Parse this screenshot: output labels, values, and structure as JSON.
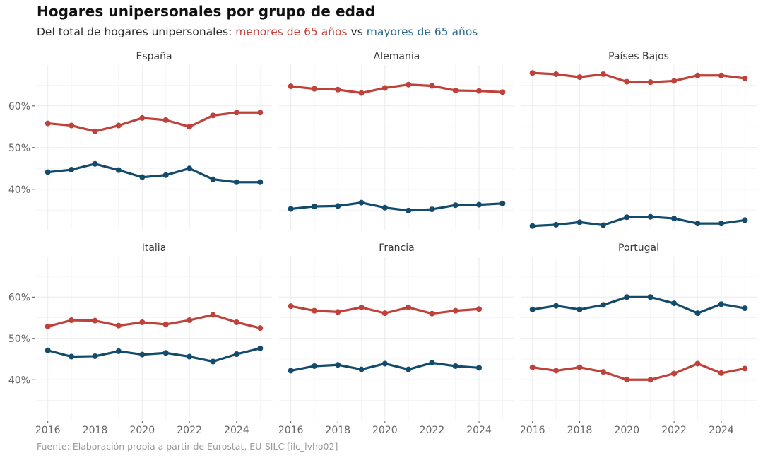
{
  "header": {
    "title": "Hogares unipersonales por grupo de edad",
    "subtitle_prefix": "Del total de hogares unipersonales: ",
    "subtitle_red": "menores de 65 años",
    "subtitle_mid": " vs ",
    "subtitle_blue": "mayores de 65 años"
  },
  "caption": "Fuente: Elaboración propia a partir de Eurostat, EU-SILC [ilc_lvho02]",
  "colors": {
    "menores_65": "#C0403A",
    "mayores_65": "#134B6C",
    "subtitle_red": "#C8423C",
    "subtitle_blue": "#2E6A8E"
  },
  "chart_data": {
    "type": "line",
    "layout": "facet 2x3, shared axes",
    "ylim": [
      30.3,
      69.8
    ],
    "xlim": [
      2015.5,
      2025.5
    ],
    "y_ticks": [
      40,
      50,
      60
    ],
    "y_tick_labels": [
      "40%",
      "50%",
      "60%"
    ],
    "x_ticks": [
      2016,
      2018,
      2020,
      2022,
      2024
    ],
    "x_tick_labels": [
      "2016",
      "2018",
      "2020",
      "2022",
      "2024"
    ],
    "grid": true,
    "legend": "none (encoded in subtitle colors)",
    "series_names": [
      "menores de 65 años",
      "mayores de 65 años"
    ],
    "panels": [
      {
        "name": "España",
        "x": [
          2016,
          2017,
          2018,
          2019,
          2020,
          2021,
          2022,
          2023,
          2024,
          2025
        ],
        "series": [
          {
            "name": "menores de 65 años",
            "values": [
              55.8,
              55.3,
              53.9,
              55.3,
              57.1,
              56.6,
              55.0,
              57.7,
              58.4,
              58.4
            ]
          },
          {
            "name": "mayores de 65 años",
            "values": [
              44.1,
              44.7,
              46.1,
              44.6,
              42.9,
              43.4,
              45.0,
              42.4,
              41.7,
              41.7
            ]
          }
        ]
      },
      {
        "name": "Alemania",
        "x": [
          2016,
          2017,
          2018,
          2019,
          2020,
          2021,
          2022,
          2023,
          2024,
          2025
        ],
        "series": [
          {
            "name": "menores de 65 años",
            "values": [
              64.7,
              64.1,
              63.9,
              63.1,
              64.3,
              65.1,
              64.8,
              63.7,
              63.6,
              63.3
            ]
          },
          {
            "name": "mayores de 65 años",
            "values": [
              35.3,
              35.9,
              36.0,
              36.8,
              35.6,
              34.9,
              35.2,
              36.2,
              36.3,
              36.6
            ]
          }
        ]
      },
      {
        "name": "Países Bajos",
        "x": [
          2016,
          2017,
          2018,
          2019,
          2020,
          2021,
          2022,
          2023,
          2024,
          2025
        ],
        "series": [
          {
            "name": "menores de 65 años",
            "values": [
              67.9,
              67.6,
              66.9,
              67.6,
              65.8,
              65.7,
              66.0,
              67.3,
              67.3,
              66.6
            ]
          },
          {
            "name": "mayores de 65 años",
            "values": [
              31.2,
              31.5,
              32.1,
              31.4,
              33.3,
              33.4,
              33.0,
              31.8,
              31.8,
              32.6
            ]
          }
        ]
      },
      {
        "name": "Italia",
        "x": [
          2016,
          2017,
          2018,
          2019,
          2020,
          2021,
          2022,
          2023,
          2024,
          2025
        ],
        "series": [
          {
            "name": "menores de 65 años",
            "values": [
              52.9,
              54.4,
              54.3,
              53.1,
              53.9,
              53.4,
              54.4,
              55.7,
              53.9,
              52.5
            ]
          },
          {
            "name": "mayores de 65 años",
            "values": [
              47.1,
              45.6,
              45.7,
              46.9,
              46.1,
              46.5,
              45.6,
              44.4,
              46.2,
              47.6
            ]
          }
        ]
      },
      {
        "name": "Francia",
        "x": [
          2016,
          2017,
          2018,
          2019,
          2020,
          2021,
          2022,
          2023,
          2024
        ],
        "series": [
          {
            "name": "menores de 65 años",
            "values": [
              57.8,
              56.7,
              56.4,
              57.5,
              56.1,
              57.5,
              56.0,
              56.7,
              57.1
            ]
          },
          {
            "name": "mayores de 65 años",
            "values": [
              42.2,
              43.3,
              43.6,
              42.5,
              43.9,
              42.5,
              44.1,
              43.3,
              42.9
            ]
          }
        ]
      },
      {
        "name": "Portugal",
        "x": [
          2016,
          2017,
          2018,
          2019,
          2020,
          2021,
          2022,
          2023,
          2024,
          2025
        ],
        "series": [
          {
            "name": "menores de 65 años",
            "values": [
              43.0,
              42.2,
              43.0,
              41.9,
              40.0,
              40.0,
              41.5,
              43.9,
              41.6,
              42.7
            ]
          },
          {
            "name": "mayores de 65 años",
            "values": [
              57.0,
              57.9,
              57.0,
              58.1,
              60.0,
              60.0,
              58.5,
              56.1,
              58.3,
              57.3
            ]
          }
        ]
      }
    ]
  }
}
